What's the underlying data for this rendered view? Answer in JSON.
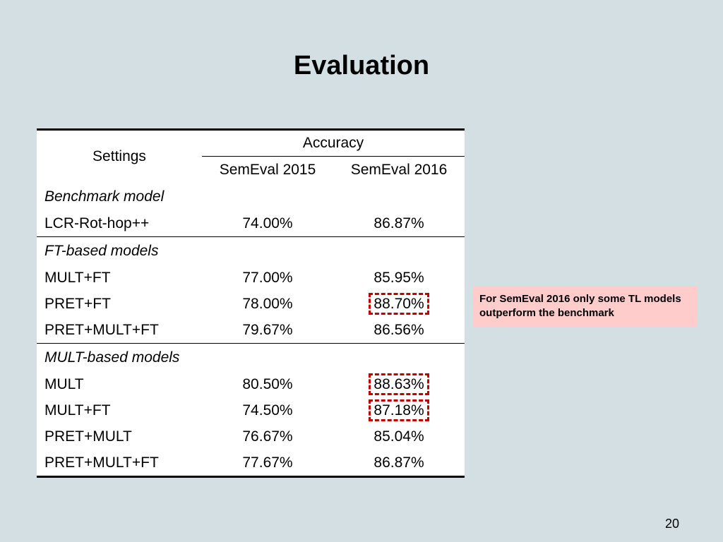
{
  "slide": {
    "title": "Evaluation",
    "page_number": "20"
  },
  "table": {
    "settings_header": "Settings",
    "accuracy_header": "Accuracy",
    "col1": "SemEval 2015",
    "col2": "SemEval 2016",
    "groups": [
      {
        "label": "Benchmark model",
        "rows": [
          {
            "name": "LCR-Rot-hop++",
            "v2015": "74.00%",
            "v2016": "86.87%",
            "highlight": false
          }
        ]
      },
      {
        "label": "FT-based models",
        "rows": [
          {
            "name": "MULT+FT",
            "v2015": "77.00%",
            "v2016": "85.95%",
            "highlight": false
          },
          {
            "name": "PRET+FT",
            "v2015": "78.00%",
            "v2016": "88.70%",
            "highlight": true
          },
          {
            "name": "PRET+MULT+FT",
            "v2015": "79.67%",
            "v2016": "86.56%",
            "highlight": false
          }
        ]
      },
      {
        "label": "MULT-based models",
        "rows": [
          {
            "name": "MULT",
            "v2015": "80.50%",
            "v2016": "88.63%",
            "highlight": true
          },
          {
            "name": "MULT+FT",
            "v2015": "74.50%",
            "v2016": "87.18%",
            "highlight": true
          },
          {
            "name": "PRET+MULT",
            "v2015": "76.67%",
            "v2016": "85.04%",
            "highlight": false
          },
          {
            "name": "PRET+MULT+FT",
            "v2015": "77.67%",
            "v2016": "86.87%",
            "highlight": false
          }
        ]
      }
    ]
  },
  "callout": {
    "text": "For SemEval 2016 only some TL models outperform the benchmark",
    "background": "#ffcccc"
  },
  "colors": {
    "background": "#d3dfe3",
    "highlight_border": "#c00000"
  }
}
